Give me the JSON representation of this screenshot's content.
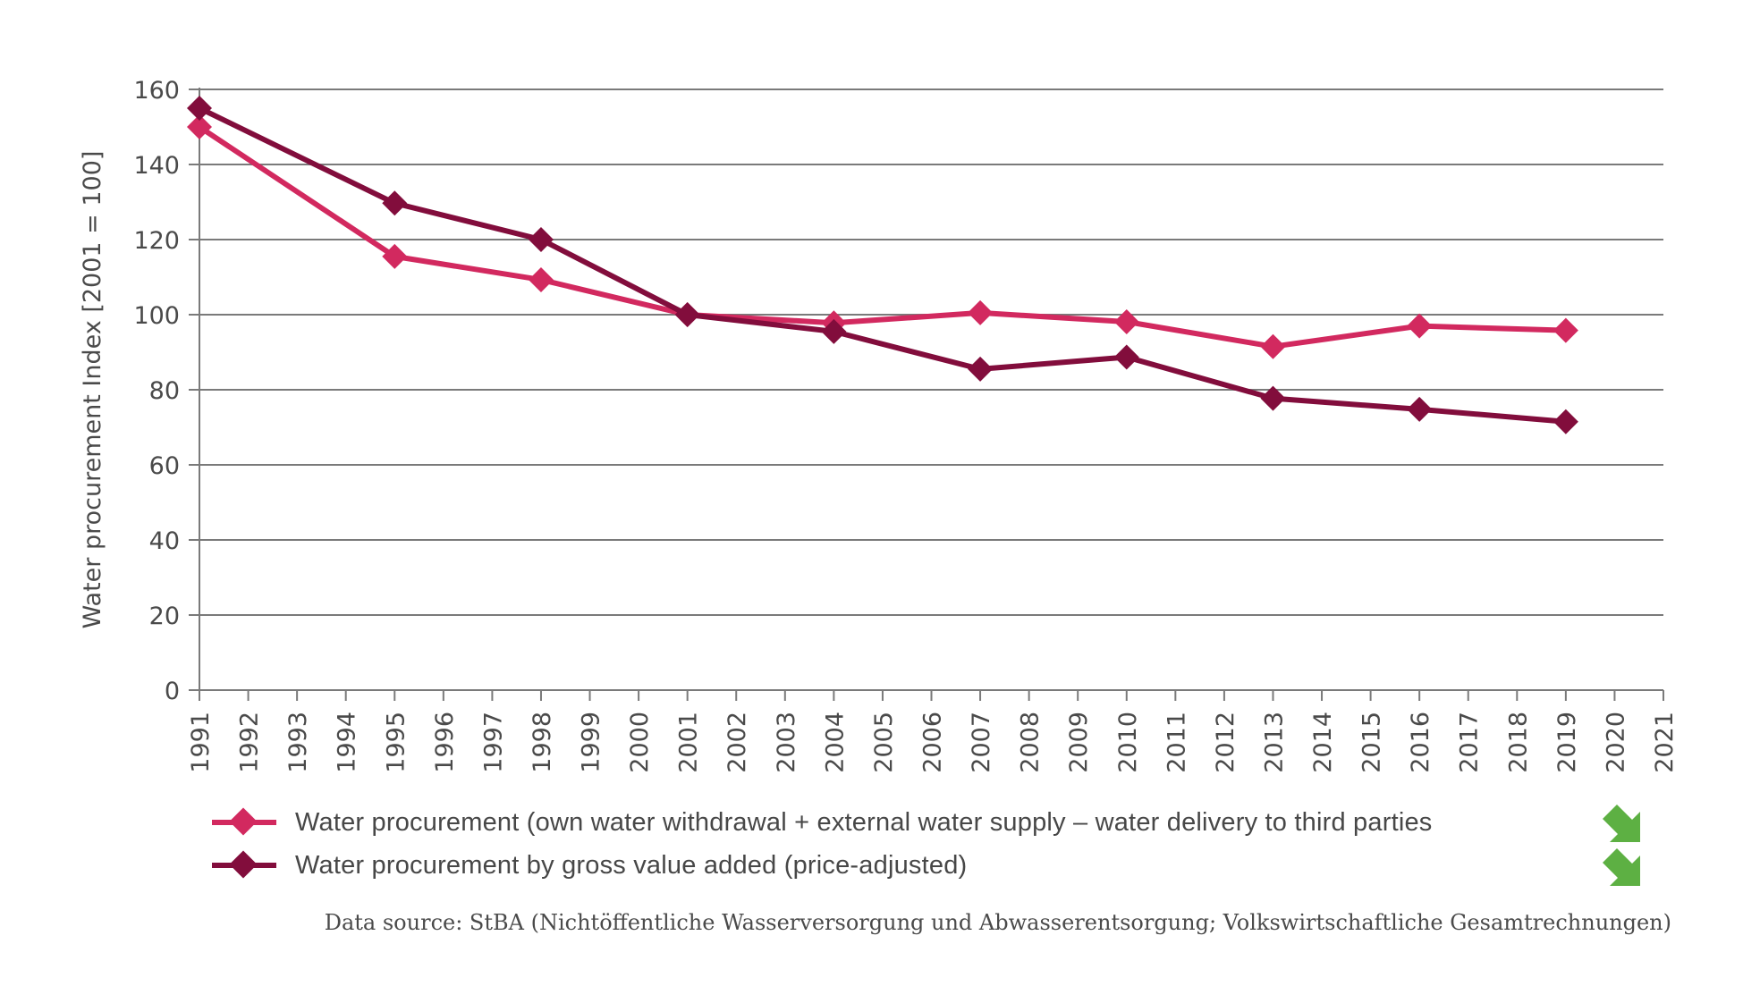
{
  "chart_data": {
    "type": "line",
    "title": "",
    "xlabel": "",
    "ylabel": "Water procurement Index [2001 = 100]",
    "ylim": [
      0,
      160
    ],
    "yticks": [
      0,
      20,
      40,
      60,
      80,
      100,
      120,
      140,
      160
    ],
    "ytick_labels": [
      "0",
      "20",
      "40",
      "60",
      "80",
      "100",
      "120",
      "140",
      "160"
    ],
    "xlim": [
      1991,
      2021
    ],
    "x_tick_labels": [
      "1991",
      "1992",
      "1993",
      "1994",
      "1995",
      "1996",
      "1997",
      "1998",
      "1999",
      "2000",
      "2001",
      "2002",
      "2003",
      "2004",
      "2005",
      "2006",
      "2007",
      "2008",
      "2009",
      "2010",
      "2011",
      "2012",
      "2013",
      "2014",
      "2015",
      "2016",
      "2017",
      "2018",
      "2019",
      "2020",
      "2021"
    ],
    "grid": "horizontal",
    "legend_position": "bottom",
    "x": [
      1991,
      1995,
      1998,
      2001,
      2004,
      2007,
      2010,
      2013,
      2016,
      2019
    ],
    "series": [
      {
        "name": "Water procurement (own water withdrawal + external water supply – water delivery to third parties",
        "color": "#d2295f",
        "marker": "diamond",
        "values": [
          150,
          115.5,
          109.3,
          100,
          97.8,
          100.5,
          98.1,
          91.5,
          97,
          95.8
        ],
        "trend": "down-right-arrow"
      },
      {
        "name": "Water procurement by gross value added (price-adjusted)",
        "color": "#820d3c",
        "marker": "diamond",
        "values": [
          155,
          129.7,
          120,
          100,
          95.5,
          85.5,
          88.7,
          77.7,
          74.8,
          71.5
        ],
        "trend": "down-right-arrow"
      }
    ],
    "source": "Data source: StBA (Nichtöffentliche Wasserversorgung und Abwasserentsorgung; Volkswirtschaftliche Gesamtrechnungen)"
  },
  "colors": {
    "grid": "#7a7a7a",
    "axis": "#7a7a7a",
    "trend_icon": "#5db043"
  }
}
